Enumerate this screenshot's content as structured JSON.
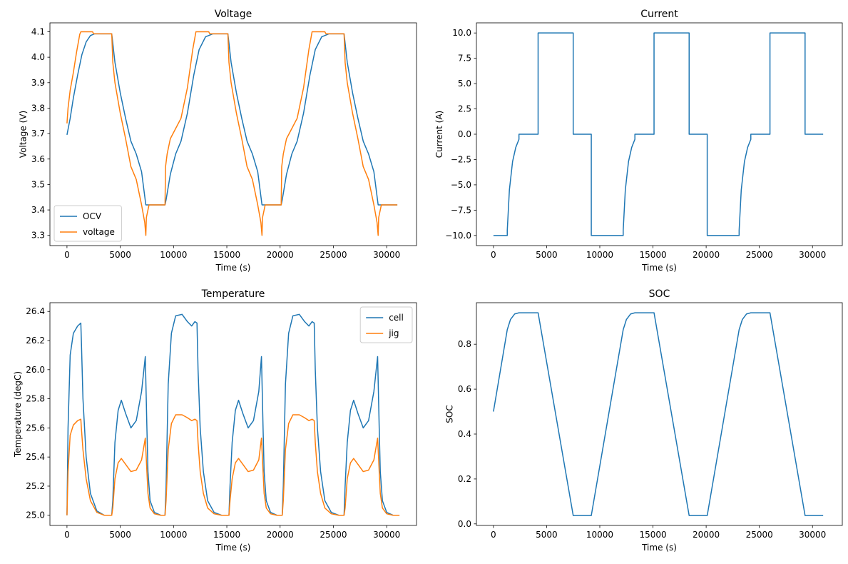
{
  "colors": {
    "blue": "#1f77b4",
    "orange": "#ff7f0e"
  },
  "chart_data": [
    {
      "type": "line",
      "title": "Voltage",
      "xlabel": "Time (s)",
      "ylabel": "Voltage (V)",
      "xlim": [
        -1600,
        32800
      ],
      "ylim": [
        3.26,
        4.135
      ],
      "xticks": [
        0,
        5000,
        10000,
        15000,
        20000,
        25000,
        30000
      ],
      "xtick_labels": [
        "0",
        "5000",
        "10000",
        "15000",
        "20000",
        "25000",
        "30000"
      ],
      "yticks": [
        3.3,
        3.4,
        3.5,
        3.6,
        3.7,
        3.8,
        3.9,
        4.0,
        4.1
      ],
      "ytick_labels": [
        "3.3",
        "3.4",
        "3.5",
        "3.6",
        "3.7",
        "3.8",
        "3.9",
        "4.0",
        "4.1"
      ],
      "legend": "lower-left",
      "series": [
        {
          "name": "OCV",
          "color": "#1f77b4",
          "x": [
            0,
            300,
            600,
            1000,
            1400,
            1800,
            2200,
            2600,
            3000,
            4200,
            4500,
            5000,
            5500,
            6000,
            6500,
            7000,
            7400,
            9200,
            9300,
            9700,
            10200,
            10700,
            11300,
            11900,
            12400,
            13000,
            13700,
            15100,
            15400,
            15900,
            16400,
            16900,
            17400,
            17900,
            18300,
            20100,
            20200,
            20600,
            21100,
            21600,
            22200,
            22800,
            23300,
            23900,
            24600,
            26000,
            26300,
            26800,
            27300,
            27800,
            28300,
            28800,
            29200,
            31000
          ],
          "y": [
            3.695,
            3.76,
            3.84,
            3.93,
            4.01,
            4.06,
            4.085,
            4.092,
            4.092,
            4.092,
            3.98,
            3.86,
            3.76,
            3.67,
            3.62,
            3.55,
            3.42,
            3.42,
            3.44,
            3.54,
            3.62,
            3.67,
            3.78,
            3.93,
            4.03,
            4.08,
            4.092,
            4.092,
            3.98,
            3.86,
            3.76,
            3.67,
            3.62,
            3.55,
            3.42,
            3.42,
            3.44,
            3.54,
            3.62,
            3.67,
            3.78,
            3.93,
            4.03,
            4.08,
            4.092,
            4.092,
            3.98,
            3.86,
            3.76,
            3.67,
            3.62,
            3.55,
            3.42,
            3.42
          ]
        },
        {
          "name": "voltage",
          "color": "#ff7f0e",
          "x": [
            0,
            100,
            300,
            600,
            900,
            1200,
            1300,
            2400,
            2500,
            4200,
            4300,
            4500,
            5000,
            5500,
            6000,
            6500,
            7000,
            7300,
            7400,
            7450,
            7700,
            9200,
            9250,
            9400,
            9700,
            10200,
            10700,
            11300,
            11800,
            12100,
            12200,
            13300,
            13400,
            15100,
            15200,
            15400,
            15900,
            16400,
            16900,
            17400,
            17900,
            18200,
            18300,
            18350,
            18600,
            20100,
            20150,
            20300,
            20600,
            21100,
            21600,
            22200,
            22700,
            23000,
            23100,
            24200,
            24300,
            26000,
            26100,
            26300,
            26800,
            27300,
            27800,
            28300,
            28800,
            29100,
            29200,
            29250,
            29500,
            31000
          ],
          "y": [
            3.74,
            3.8,
            3.87,
            3.94,
            4.02,
            4.09,
            4.1,
            4.1,
            4.092,
            4.092,
            3.98,
            3.9,
            3.78,
            3.68,
            3.57,
            3.52,
            3.42,
            3.35,
            3.3,
            3.37,
            3.42,
            3.42,
            3.57,
            3.62,
            3.68,
            3.72,
            3.76,
            3.88,
            4.03,
            4.1,
            4.1,
            4.1,
            4.092,
            4.092,
            3.98,
            3.9,
            3.78,
            3.68,
            3.57,
            3.52,
            3.42,
            3.35,
            3.3,
            3.37,
            3.42,
            3.42,
            3.57,
            3.62,
            3.68,
            3.72,
            3.76,
            3.88,
            4.03,
            4.1,
            4.1,
            4.1,
            4.092,
            4.092,
            3.98,
            3.9,
            3.78,
            3.68,
            3.57,
            3.52,
            3.42,
            3.35,
            3.3,
            3.37,
            3.42,
            3.42
          ]
        }
      ]
    },
    {
      "type": "line",
      "title": "Current",
      "xlabel": "Time (s)",
      "ylabel": "Current (A)",
      "xlim": [
        -1600,
        32800
      ],
      "ylim": [
        -11.0,
        11.0
      ],
      "xticks": [
        0,
        5000,
        10000,
        15000,
        20000,
        25000,
        30000
      ],
      "xtick_labels": [
        "0",
        "5000",
        "10000",
        "15000",
        "20000",
        "25000",
        "30000"
      ],
      "yticks": [
        -10.0,
        -7.5,
        -5.0,
        -2.5,
        0.0,
        2.5,
        5.0,
        7.5,
        10.0
      ],
      "ytick_labels": [
        "−10.0",
        "−7.5",
        "−5.0",
        "−2.5",
        "0.0",
        "2.5",
        "5.0",
        "7.5",
        "10.0"
      ],
      "series": [
        {
          "name": "",
          "color": "#1f77b4",
          "x": [
            0,
            1300,
            1300,
            1500,
            1800,
            2100,
            2400,
            2400,
            4200,
            4200,
            7500,
            7500,
            9200,
            9200,
            12200,
            12200,
            12400,
            12700,
            13000,
            13300,
            13300,
            15100,
            15100,
            18400,
            18400,
            20100,
            20100,
            23100,
            23100,
            23300,
            23600,
            23900,
            24200,
            24200,
            26000,
            26000,
            29300,
            29300,
            31000
          ],
          "y": [
            -10,
            -10,
            -9.5,
            -5.5,
            -2.7,
            -1.3,
            -0.5,
            0,
            0,
            10,
            10,
            0,
            0,
            -10,
            -10,
            -9.5,
            -5.5,
            -2.7,
            -1.3,
            -0.5,
            0,
            0,
            10,
            10,
            0,
            0,
            -10,
            -10,
            -9.5,
            -5.5,
            -2.7,
            -1.3,
            -0.5,
            0,
            0,
            10,
            10,
            0,
            0
          ]
        }
      ]
    },
    {
      "type": "line",
      "title": "Temperature",
      "xlabel": "Time (s)",
      "ylabel": "Temperature (degC)",
      "xlim": [
        -1600,
        32800
      ],
      "ylim": [
        24.93,
        26.46
      ],
      "xticks": [
        0,
        5000,
        10000,
        15000,
        20000,
        25000,
        30000
      ],
      "xtick_labels": [
        "0",
        "5000",
        "10000",
        "15000",
        "20000",
        "25000",
        "30000"
      ],
      "yticks": [
        25.0,
        25.2,
        25.4,
        25.6,
        25.8,
        26.0,
        26.2,
        26.4
      ],
      "ytick_labels": [
        "25.0",
        "25.2",
        "25.4",
        "25.6",
        "25.8",
        "26.0",
        "26.2",
        "26.4"
      ],
      "legend": "top-right",
      "series": [
        {
          "name": "cell",
          "color": "#1f77b4",
          "x": [
            0,
            100,
            300,
            600,
            1000,
            1300,
            1350,
            1500,
            1800,
            2200,
            2800,
            3500,
            4200,
            4300,
            4500,
            4800,
            5100,
            5500,
            6000,
            6500,
            7000,
            7350,
            7500,
            7600,
            7800,
            8200,
            8800,
            9200,
            9300,
            9500,
            9800,
            10200,
            10800,
            11300,
            11700,
            12000,
            12200,
            12300,
            12500,
            12800,
            13200,
            13800,
            14500,
            15200,
            15300,
            15500,
            15800,
            16100,
            16500,
            17000,
            17500,
            18000,
            18250,
            18400,
            18500,
            18700,
            19100,
            19700,
            20200,
            20300,
            20500,
            20800,
            21200,
            21800,
            22300,
            22700,
            23000,
            23200,
            23300,
            23500,
            23800,
            24200,
            24800,
            25500,
            26000,
            26100,
            26300,
            26600,
            26900,
            27300,
            27800,
            28300,
            28800,
            29150,
            29300,
            29400,
            29600,
            30000,
            30600,
            31200
          ],
          "y": [
            25.0,
            25.6,
            26.1,
            26.25,
            26.3,
            26.32,
            26.2,
            25.8,
            25.4,
            25.15,
            25.03,
            25.0,
            25.0,
            25.1,
            25.5,
            25.72,
            25.79,
            25.7,
            25.6,
            25.65,
            25.85,
            26.09,
            25.6,
            25.3,
            25.1,
            25.02,
            25.0,
            25.0,
            25.2,
            25.9,
            26.25,
            26.37,
            26.38,
            26.33,
            26.3,
            26.33,
            26.32,
            26.0,
            25.6,
            25.3,
            25.1,
            25.02,
            25.0,
            25.0,
            25.2,
            25.5,
            25.72,
            25.79,
            25.7,
            25.6,
            25.65,
            25.85,
            26.09,
            25.6,
            25.3,
            25.1,
            25.02,
            25.0,
            25.0,
            25.2,
            25.9,
            26.25,
            26.37,
            26.38,
            26.33,
            26.3,
            26.33,
            26.32,
            26.0,
            25.6,
            25.3,
            25.1,
            25.02,
            25.0,
            25.0,
            25.2,
            25.5,
            25.72,
            25.79,
            25.7,
            25.6,
            25.65,
            25.85,
            26.09,
            25.6,
            25.3,
            25.1,
            25.02,
            25.0,
            25.0
          ]
        },
        {
          "name": "jig",
          "color": "#ff7f0e",
          "x": [
            0,
            100,
            300,
            600,
            1000,
            1300,
            1350,
            1500,
            1800,
            2200,
            2800,
            3500,
            4200,
            4300,
            4500,
            4800,
            5100,
            5500,
            6000,
            6500,
            7000,
            7350,
            7500,
            7600,
            7800,
            8200,
            8800,
            9200,
            9300,
            9500,
            9800,
            10200,
            10800,
            11300,
            11700,
            12000,
            12200,
            12300,
            12500,
            12800,
            13200,
            13800,
            14500,
            15200,
            15300,
            15500,
            15800,
            16100,
            16500,
            17000,
            17500,
            18000,
            18250,
            18400,
            18500,
            18700,
            19100,
            19700,
            20200,
            20300,
            20500,
            20800,
            21200,
            21800,
            22300,
            22700,
            23000,
            23200,
            23300,
            23500,
            23800,
            24200,
            24800,
            25500,
            26000,
            26100,
            26300,
            26600,
            26900,
            27300,
            27800,
            28300,
            28800,
            29150,
            29300,
            29400,
            29600,
            30000,
            30600,
            31200
          ],
          "y": [
            25.0,
            25.3,
            25.55,
            25.62,
            25.65,
            25.66,
            25.6,
            25.45,
            25.25,
            25.1,
            25.02,
            25.0,
            25.0,
            25.05,
            25.25,
            25.36,
            25.39,
            25.35,
            25.3,
            25.31,
            25.38,
            25.53,
            25.3,
            25.15,
            25.05,
            25.01,
            25.0,
            25.0,
            25.1,
            25.45,
            25.63,
            25.69,
            25.69,
            25.67,
            25.65,
            25.66,
            25.65,
            25.5,
            25.3,
            25.15,
            25.05,
            25.01,
            25.0,
            25.0,
            25.1,
            25.25,
            25.36,
            25.39,
            25.35,
            25.3,
            25.31,
            25.38,
            25.53,
            25.3,
            25.15,
            25.05,
            25.01,
            25.0,
            25.0,
            25.1,
            25.45,
            25.63,
            25.69,
            25.69,
            25.67,
            25.65,
            25.66,
            25.65,
            25.5,
            25.3,
            25.15,
            25.05,
            25.01,
            25.0,
            25.0,
            25.05,
            25.25,
            25.36,
            25.39,
            25.35,
            25.3,
            25.31,
            25.38,
            25.53,
            25.3,
            25.15,
            25.05,
            25.01,
            25.0,
            25.0
          ]
        }
      ]
    },
    {
      "type": "line",
      "title": "SOC",
      "xlabel": "Time (s)",
      "ylabel": "SOC",
      "xlim": [
        -1600,
        32800
      ],
      "ylim": [
        -0.007,
        0.985
      ],
      "xticks": [
        0,
        5000,
        10000,
        15000,
        20000,
        25000,
        30000
      ],
      "xtick_labels": [
        "0",
        "5000",
        "10000",
        "15000",
        "20000",
        "25000",
        "30000"
      ],
      "yticks": [
        0.0,
        0.2,
        0.4,
        0.6,
        0.8
      ],
      "ytick_labels": [
        "0.0",
        "0.2",
        "0.4",
        "0.6",
        "0.8"
      ],
      "series": [
        {
          "name": "",
          "color": "#1f77b4",
          "x": [
            0,
            1300,
            1600,
            2000,
            2400,
            3000,
            4200,
            7500,
            9200,
            12200,
            12500,
            12900,
            13300,
            14000,
            15100,
            18400,
            20100,
            23100,
            23400,
            23800,
            24200,
            24900,
            26000,
            29300,
            31000
          ],
          "y": [
            0.5,
            0.865,
            0.91,
            0.935,
            0.94,
            0.94,
            0.94,
            0.037,
            0.037,
            0.865,
            0.91,
            0.935,
            0.94,
            0.94,
            0.94,
            0.037,
            0.037,
            0.865,
            0.91,
            0.935,
            0.94,
            0.94,
            0.94,
            0.037,
            0.037
          ]
        }
      ]
    }
  ]
}
